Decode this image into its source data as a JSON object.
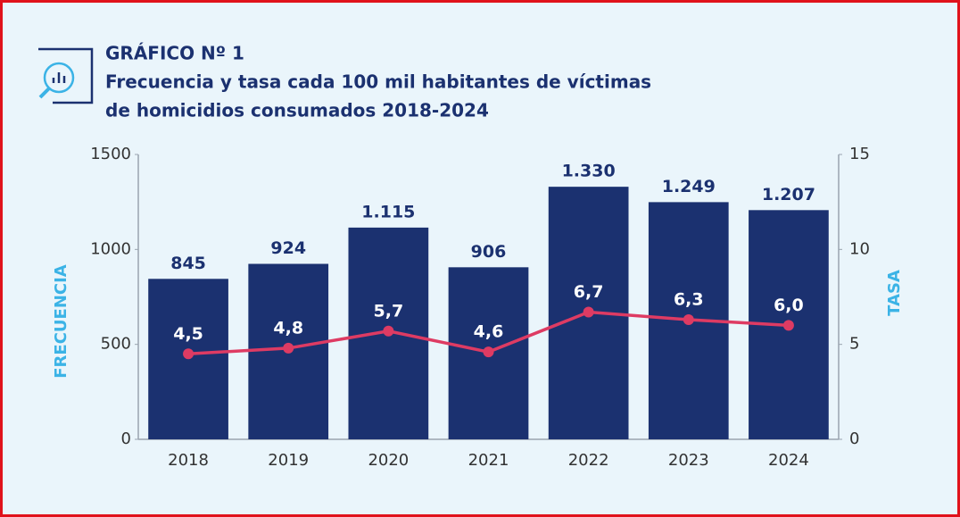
{
  "chart_data": {
    "type": "bar",
    "title": "GRÁFICO Nº 1",
    "subtitle": [
      "Frecuencia y tasa cada 100 mil habitantes de víctimas",
      "de homicidios consumados 2018-2024"
    ],
    "y_label": "FRECUENCIA",
    "y2_label": "TASA",
    "categories": [
      "2018",
      "2019",
      "2020",
      "2021",
      "2022",
      "2023",
      "2024"
    ],
    "series": [
      {
        "type": "bar",
        "color": "#1b3170",
        "values": [
          845,
          924,
          1115,
          906,
          1330,
          1249,
          1207
        ],
        "value_labels": [
          "845",
          "924",
          "1.115",
          "906",
          "1.330",
          "1.249",
          "1.207"
        ]
      },
      {
        "type": "line",
        "axis": "y2",
        "color": "#de3b63",
        "values": [
          4.5,
          4.8,
          5.7,
          4.6,
          6.7,
          6.3,
          6.0
        ],
        "value_labels": [
          "4,5",
          "4,8",
          "5,7",
          "4,6",
          "6,7",
          "6,3",
          "6,0"
        ]
      }
    ],
    "ylim": [
      0,
      1500
    ],
    "yticks": [
      0,
      500,
      1000,
      1500
    ],
    "y2lim": [
      0,
      15
    ],
    "y2ticks": [
      0,
      5,
      10,
      15
    ]
  }
}
